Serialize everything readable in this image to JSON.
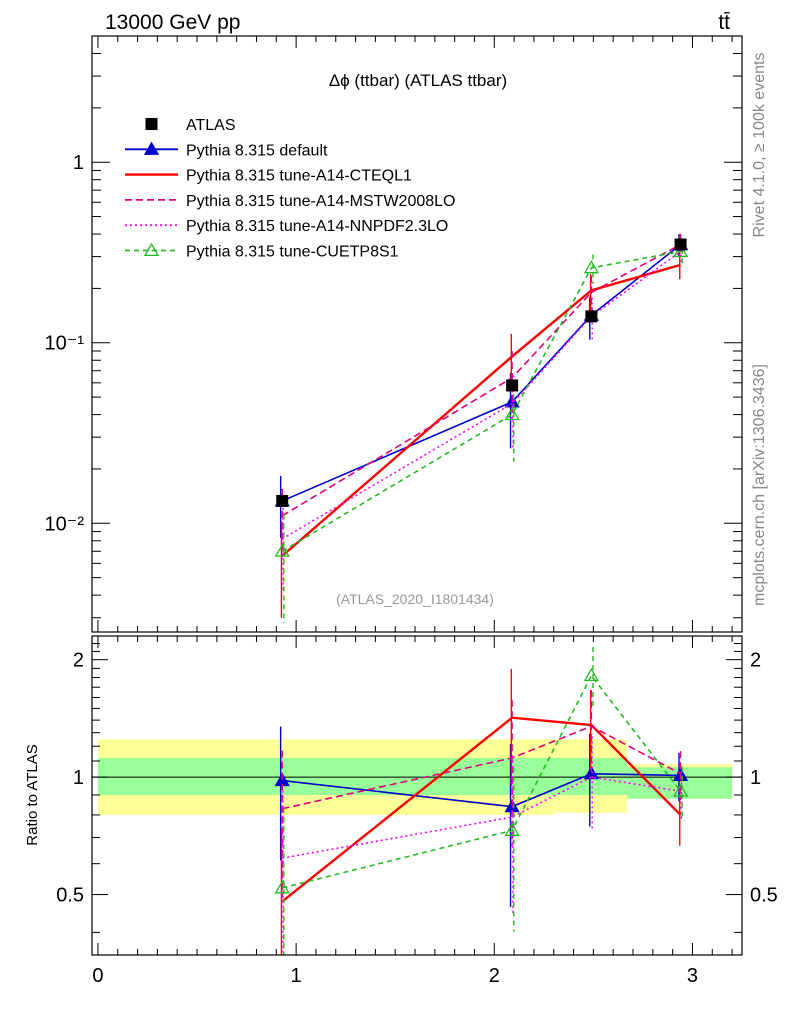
{
  "header": {
    "left": "13000 GeV pp",
    "right": "tt̄"
  },
  "side_labels": {
    "rivet": "Rivet 4.1.0, ≥ 100k events",
    "mcplots": "mcplots.cern.ch [arXiv:1306.3436]"
  },
  "chart_data": {
    "type": "line",
    "title": "Δϕ (ttbar) (ATLAS ttbar)",
    "watermark": "(ATLAS_2020_I1801434)",
    "ratio_ylabel": "Ratio to ATLAS",
    "xlabel": "",
    "ylabel": "",
    "x": [
      0.93,
      2.09,
      2.49,
      2.94
    ],
    "xlim": [
      -0.03,
      3.25
    ],
    "main_ylim": [
      0.0025,
      5.0
    ],
    "main_yscale": "log",
    "main_yticks": [
      {
        "value": 1,
        "label": "1"
      },
      {
        "value": 0.1,
        "label": "10⁻¹"
      },
      {
        "value": 0.01,
        "label": "10⁻²"
      }
    ],
    "ratio_ylim": [
      0.35,
      2.3
    ],
    "ratio_yscale": "log",
    "ratio_yticks": [
      {
        "value": 2,
        "label": "2"
      },
      {
        "value": 1,
        "label": "1"
      },
      {
        "value": 0.5,
        "label": "0.5"
      }
    ],
    "xticks": [
      {
        "value": 0,
        "label": "0"
      },
      {
        "value": 1,
        "label": "1"
      },
      {
        "value": 2,
        "label": "2"
      },
      {
        "value": 3,
        "label": "3"
      }
    ],
    "data": {
      "name": "ATLAS",
      "values": [
        0.0133,
        0.058,
        0.14,
        0.35
      ],
      "band_edges": [
        0,
        2.3,
        2.67,
        3.2
      ],
      "inner_band": [
        [
          0.9,
          1.12
        ],
        [
          0.9,
          1.12
        ],
        [
          0.88,
          1.06
        ],
        [
          0.95,
          1.04
        ]
      ],
      "outer_band": [
        [
          0.8,
          1.25
        ],
        [
          0.81,
          1.25
        ],
        [
          0.88,
          1.08
        ],
        [
          0.95,
          1.08
        ]
      ]
    },
    "series": [
      {
        "name": "Pythia 8.315 default",
        "color": "#0000cc",
        "dash": "",
        "marker": "triangle-filled",
        "values": [
          0.0133,
          0.047,
          0.142,
          0.35
        ],
        "errors": [
          0.005,
          0.021,
          0.038,
          0.05
        ],
        "ratio": [
          0.98,
          0.84,
          1.02,
          1.01
        ]
      },
      {
        "name": "Pythia 8.315 tune-A14-CTEQL1",
        "color": "#ff0000",
        "dash": "",
        "marker": "none",
        "values": [
          0.0066,
          0.084,
          0.195,
          0.27
        ],
        "errors": [
          0.0036,
          0.028,
          0.045,
          0.045
        ],
        "ratio": [
          0.48,
          1.42,
          1.36,
          0.8
        ]
      },
      {
        "name": "Pythia 8.315 tune-A14-MSTW2008LO",
        "color": "#e0007a",
        "dash": "7,4",
        "marker": "none",
        "values": [
          0.011,
          0.064,
          0.19,
          0.35
        ],
        "errors": [
          0.0045,
          0.026,
          0.045,
          0.05
        ],
        "ratio": [
          0.83,
          1.12,
          1.35,
          1.02
        ]
      },
      {
        "name": "Pythia 8.315 tune-A14-NNPDF2.3LO",
        "color": "#ff00ff",
        "dash": "2,3",
        "marker": "none",
        "values": [
          0.0082,
          0.046,
          0.14,
          0.32
        ],
        "errors": [
          0.004,
          0.02,
          0.038,
          0.05
        ],
        "ratio": [
          0.62,
          0.79,
          1.0,
          0.92
        ]
      },
      {
        "name": "Pythia 8.315 tune-CUETP8S1",
        "color": "#22bb22",
        "dash": "5,4",
        "marker": "triangle-open",
        "values": [
          0.007,
          0.04,
          0.26,
          0.32
        ],
        "errors": [
          0.0042,
          0.018,
          0.048,
          0.05
        ],
        "ratio": [
          0.52,
          0.73,
          1.82,
          0.92
        ]
      }
    ]
  }
}
